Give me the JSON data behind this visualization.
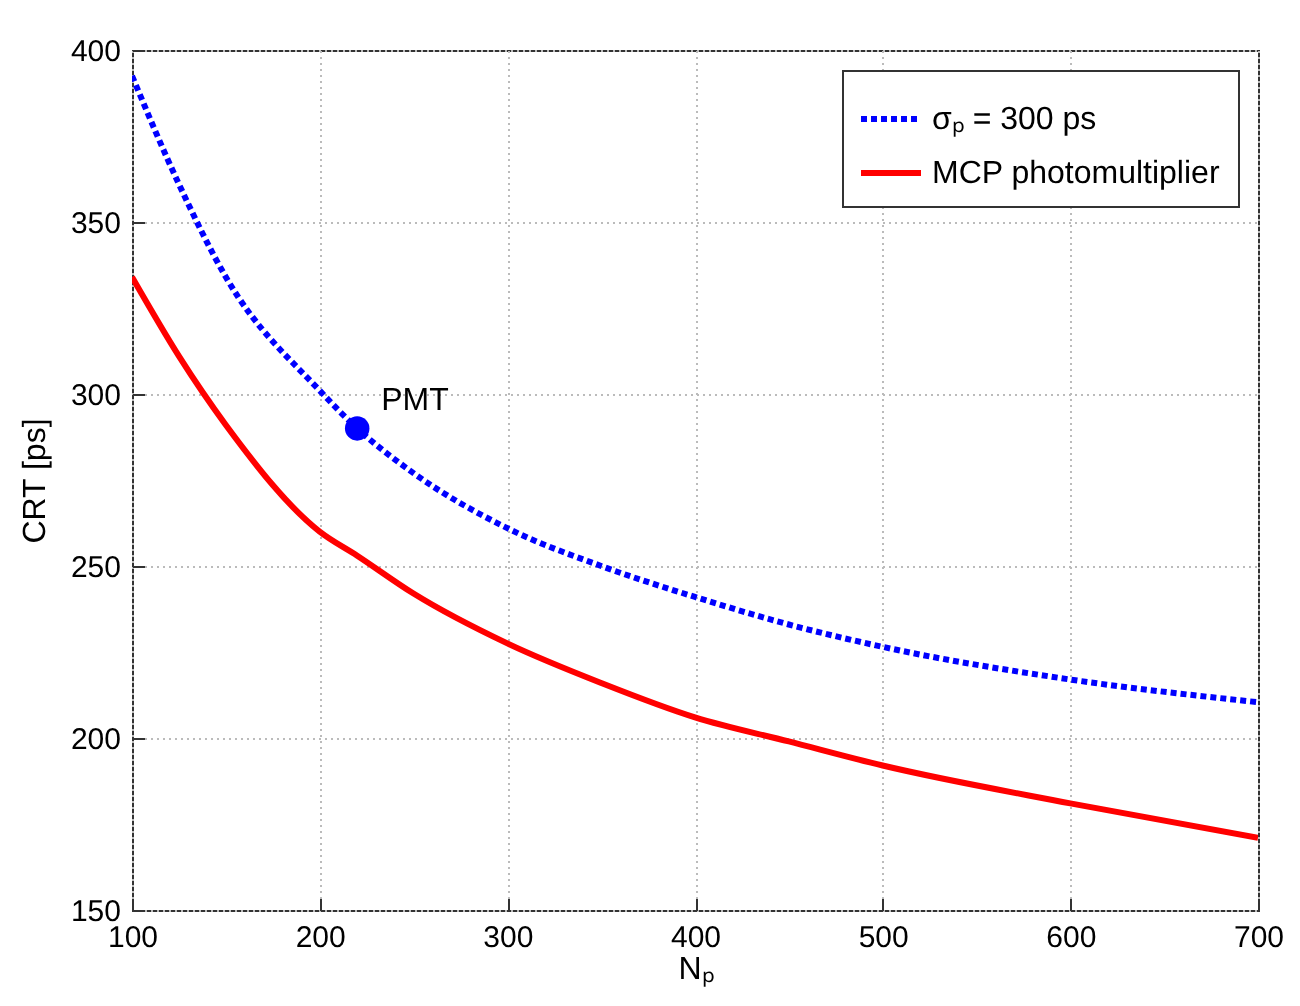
{
  "chart_data": {
    "type": "line",
    "xlabel": "Nₚ",
    "ylabel": "CRT [ps]",
    "xlim": [
      100,
      700
    ],
    "ylim": [
      150,
      400
    ],
    "xticks": [
      100,
      200,
      300,
      400,
      500,
      600,
      700
    ],
    "yticks": [
      150,
      200,
      250,
      300,
      350,
      400
    ],
    "grid": true,
    "legend": "top right",
    "annotations": [
      {
        "text": "PMT",
        "x": 220,
        "y": 290
      }
    ],
    "series": [
      {
        "name": "σₚ = 300 ps",
        "color": "#0000ff",
        "line_style": "dotted",
        "x": [
          100,
          125,
          150,
          200,
          220,
          250,
          300,
          350,
          400,
          450,
          500,
          600,
          700
        ],
        "values": [
          392.5,
          361,
          334,
          301,
          290,
          277,
          261,
          250,
          241,
          233,
          226.5,
          217,
          210.4
        ]
      },
      {
        "name": "MCP photomultiplier",
        "color": "#ff0000",
        "line_style": "solid",
        "x": [
          100,
          125,
          150,
          200,
          220,
          250,
          300,
          350,
          400,
          450,
          500,
          600,
          700
        ],
        "values": [
          334,
          311,
          291,
          260,
          253,
          242,
          227.5,
          216,
          206,
          199,
          192,
          181,
          171
        ]
      },
      {
        "type": "scatter",
        "color": "#0000ff",
        "marker": "circle",
        "x": [
          220
        ],
        "values": [
          290
        ]
      }
    ]
  }
}
